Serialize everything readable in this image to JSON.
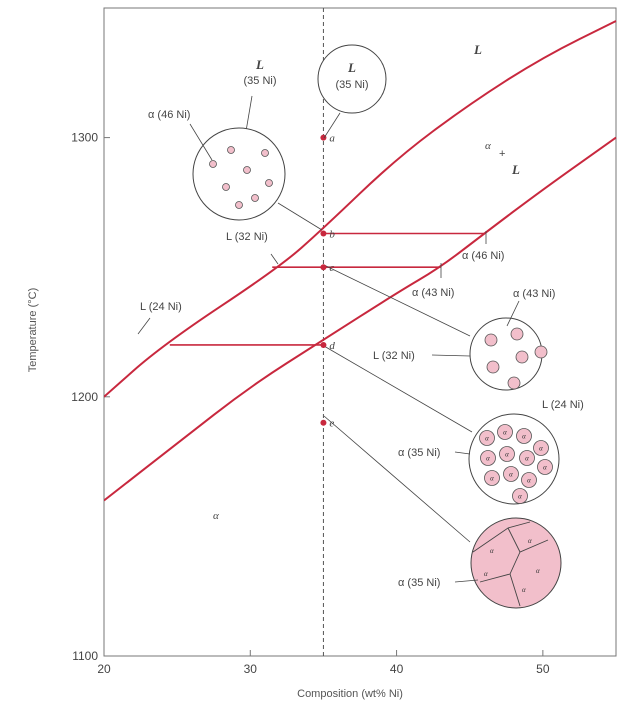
{
  "chart_data": {
    "type": "line",
    "xlabel": "Composition (wt% Ni)",
    "ylabel": "Temperature (°C)",
    "xlim": [
      20,
      55
    ],
    "ylim": [
      1100,
      1350
    ],
    "x_ticks": [
      20,
      30,
      40,
      50
    ],
    "y_ticks": [
      1100,
      1200,
      1300
    ],
    "grid": false,
    "colors": {
      "phase_lines": "#c8283e",
      "alpha_fill": "#f2bfcb",
      "ink": "#333333"
    },
    "series": [
      {
        "points": [
          [
            20,
            1200
          ],
          [
            24,
            1220
          ],
          [
            32,
            1250
          ],
          [
            35,
            1265
          ],
          [
            40,
            1292
          ],
          [
            45,
            1313
          ],
          [
            50,
            1331
          ],
          [
            55,
            1345
          ]
        ]
      },
      {
        "points": [
          [
            20,
            1160
          ],
          [
            25,
            1182
          ],
          [
            30,
            1204
          ],
          [
            35,
            1222
          ],
          [
            40,
            1240
          ],
          [
            43,
            1250
          ],
          [
            46,
            1263
          ],
          [
            50,
            1280
          ],
          [
            55,
            1300
          ]
        ]
      }
    ],
    "tie_lines": [
      {
        "y": 1263,
        "x_from": 35,
        "x_to": 46
      },
      {
        "y": 1250,
        "x_from": 31.5,
        "x_to": 43
      },
      {
        "y": 1220,
        "x_from": 24.5,
        "x_to": 35
      }
    ],
    "composition_line": {
      "x": 35
    },
    "points": [
      {
        "label": "a",
        "x": 35,
        "y": 1300
      },
      {
        "label": "b",
        "x": 35,
        "y": 1263
      },
      {
        "label": "c",
        "x": 35,
        "y": 1250
      },
      {
        "label": "d",
        "x": 35,
        "y": 1220
      },
      {
        "label": "e",
        "x": 35,
        "y": 1190
      }
    ],
    "region_labels": {
      "liquid_symbol": "L",
      "two_phase_alpha": "α",
      "two_phase_plus": "+",
      "two_phase_L": "L",
      "solid_alpha": "α"
    },
    "annotations": {
      "circle_a_phase": "L",
      "circle_a_comp": "(35 Ni)",
      "circle_b_phase": "L",
      "circle_b_comp": "(35 Ni)",
      "alpha_46": "α (46 Ni)",
      "L_32": "L (32 Ni)",
      "alpha_46_tie": "α (46 Ni)",
      "alpha_43_tie": "α (43 Ni)",
      "L_24": "L (24 Ni)",
      "alpha_43_circle": "α (43 Ni)",
      "L_32_circle": "L (32 Ni)",
      "L_24_circle": "L (24 Ni)",
      "alpha_35_d": "α (35 Ni)",
      "alpha_35_e": "α (35 Ni)"
    }
  }
}
